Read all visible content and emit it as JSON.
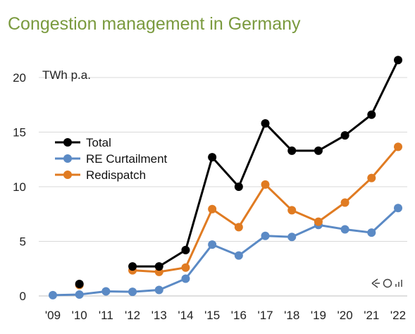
{
  "chart_data": {
    "type": "line",
    "title": "Congestion management in Germany",
    "unit_label": "TWh p.a.",
    "categories": [
      "'09",
      "'10",
      "'11",
      "'12",
      "'13",
      "'14",
      "'15",
      "'16",
      "'17",
      "'18",
      "'19",
      "'20",
      "'21",
      "'22"
    ],
    "ylim": [
      0,
      22
    ],
    "yticks": [
      0,
      5,
      10,
      15,
      20
    ],
    "grid": "horizontal",
    "legend_position": "left",
    "series": [
      {
        "name": "Total",
        "color": "#000000",
        "values": [
          null,
          1.1,
          null,
          2.7,
          2.7,
          4.2,
          12.7,
          10.0,
          15.8,
          13.3,
          13.3,
          14.7,
          16.6,
          21.6
        ]
      },
      {
        "name": "RE Curtailment",
        "color": "#5b8ac5",
        "values": [
          0.07,
          0.13,
          0.42,
          0.38,
          0.55,
          1.58,
          4.7,
          3.7,
          5.5,
          5.4,
          6.5,
          6.1,
          5.8,
          8.05
        ]
      },
      {
        "name": "Redispatch",
        "color": "#e07b22",
        "values": [
          null,
          1.0,
          null,
          2.35,
          2.2,
          2.6,
          7.95,
          6.3,
          10.2,
          7.85,
          6.8,
          8.55,
          10.8,
          13.65
        ]
      }
    ],
    "watermark_icon": "logo-icon"
  }
}
